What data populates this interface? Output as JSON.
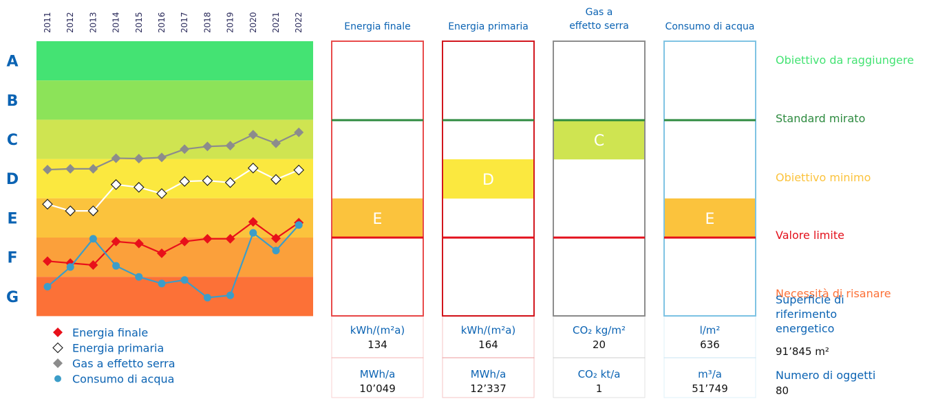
{
  "chart_data": {
    "type": "line",
    "x": [
      "2011",
      "2012",
      "2013",
      "2014",
      "2015",
      "2016",
      "2017",
      "2018",
      "2019",
      "2020",
      "2021",
      "2022"
    ],
    "classes": [
      "A",
      "B",
      "C",
      "D",
      "E",
      "F",
      "G"
    ],
    "class_colors": [
      "#44e373",
      "#8ce359",
      "#cfe451",
      "#fbe83f",
      "#fbc33d",
      "#fba03b",
      "#fc7137"
    ],
    "y_axis": "energy class position (0 = top of class A, 7 = bottom of class G)",
    "ylim": [
      0,
      7
    ],
    "series": [
      {
        "name": "Energia finale",
        "color": "#e8101a",
        "marker": "diamond-filled",
        "values": [
          5.6,
          5.65,
          5.7,
          5.1,
          5.15,
          5.4,
          5.1,
          5.03,
          5.03,
          4.6,
          5.02,
          4.62
        ]
      },
      {
        "name": "Energia primaria",
        "color": "#ffffff",
        "marker": "diamond-open",
        "values": [
          4.15,
          4.32,
          4.32,
          3.65,
          3.72,
          3.88,
          3.57,
          3.55,
          3.6,
          3.23,
          3.52,
          3.28
        ]
      },
      {
        "name": "Gas a effetto serra",
        "color": "#8c8c8c",
        "marker": "diamond-filled",
        "values": [
          3.27,
          3.25,
          3.25,
          2.98,
          2.99,
          2.96,
          2.75,
          2.68,
          2.66,
          2.38,
          2.6,
          2.32
        ]
      },
      {
        "name": "Consumo di acqua",
        "color": "#3c9dc8",
        "marker": "circle",
        "values": [
          6.25,
          5.75,
          5.03,
          5.72,
          6.0,
          6.17,
          6.08,
          6.53,
          6.47,
          4.88,
          5.33,
          4.68
        ]
      }
    ],
    "legend_placement": "bottom-left",
    "grid": false
  },
  "indicators": [
    {
      "title": "Energia finale",
      "frame_color": "#e84a4a",
      "rating": "E",
      "rating_color": "#fbc33d",
      "unit1": "kWh/(m²a)",
      "value1": "134",
      "unit2": "MWh/a",
      "value2": "10’049"
    },
    {
      "title": "Energia primaria",
      "frame_color": "#d2161d",
      "rating": "D",
      "rating_color": "#fbe83f",
      "unit1": "kWh/(m²a)",
      "value1": "164",
      "unit2": "MWh/a",
      "value2": "12’337"
    },
    {
      "title": "Gas a effetto serra",
      "frame_color": "#8c8c8c",
      "rating": "C",
      "rating_color": "#cfe451",
      "unit1": "CO₂ kg/m²",
      "value1": "20",
      "unit2": "CO₂ kt/a",
      "value2": "1"
    },
    {
      "title": "Consumo di acqua",
      "frame_color": "#7ec3e3",
      "rating": "E",
      "rating_color": "#fbc33d",
      "unit1": "l/m²",
      "value1": "636",
      "unit2": "m³/a",
      "value2": "51’749"
    }
  ],
  "thresholds": [
    {
      "label": "Obiettivo da raggiungere",
      "color": "#44e373"
    },
    {
      "label": "Standard mirato",
      "color": "#2e8b40",
      "line_color": "#2e8b40"
    },
    {
      "label": "Obiettivo minimo",
      "color": "#fbc33d"
    },
    {
      "label": "Valore limite",
      "color": "#e3101b",
      "line_color": "#e3101b"
    },
    {
      "label": "Necessità di risanare",
      "color": "#fc7137"
    }
  ],
  "summary": {
    "area_label": "Superficie di riferimento energetico",
    "area_value": "91’845 m²",
    "objects_label": "Numero di oggetti",
    "objects_value": "80"
  }
}
